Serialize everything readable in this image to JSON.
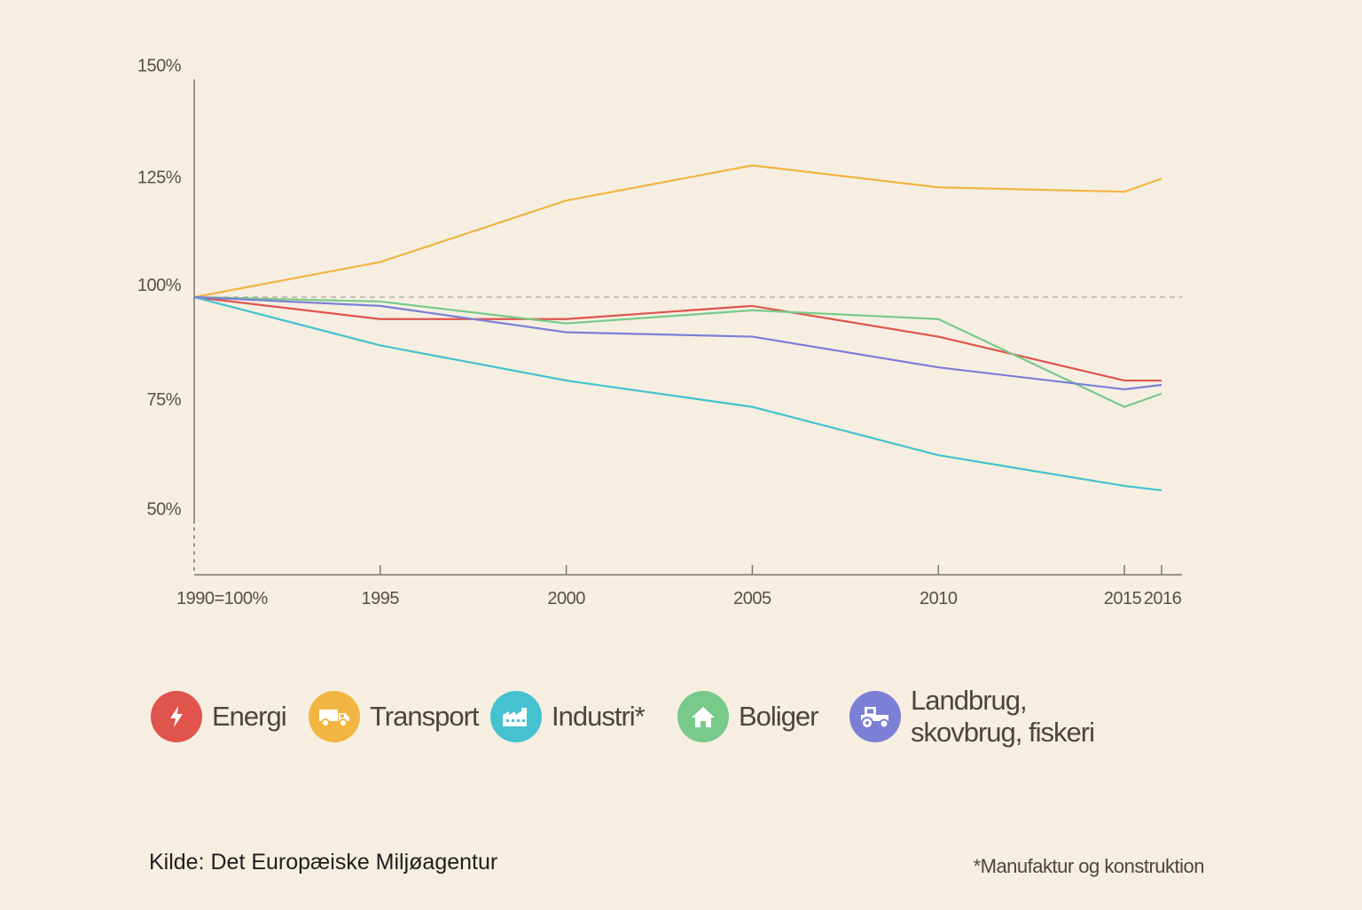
{
  "chart_data": {
    "type": "line",
    "x": [
      1990,
      1995,
      2000,
      2005,
      2010,
      2015,
      2016
    ],
    "x_tick_labels": [
      "1990=100%",
      "1995",
      "2000",
      "2005",
      "2010",
      "2015",
      "2016"
    ],
    "y_tick_values": [
      50,
      75,
      100,
      125,
      150
    ],
    "y_tick_labels": [
      "50%",
      "75%",
      "100%",
      "125%",
      "150%"
    ],
    "ylim": [
      37,
      150
    ],
    "baseline": 100,
    "grid": false,
    "legend_position": "bottom",
    "series": [
      {
        "name": "Energi",
        "color": "#e0544c",
        "values": [
          100,
          95,
          95,
          98,
          91,
          81,
          81
        ]
      },
      {
        "name": "Transport",
        "color": "#f2b542",
        "values": [
          100,
          108,
          122,
          130,
          125,
          124,
          127
        ]
      },
      {
        "name": "Industri*",
        "color": "#45c1d0",
        "values": [
          100,
          89,
          81,
          75,
          64,
          57,
          56
        ]
      },
      {
        "name": "Boliger",
        "color": "#78c98a",
        "values": [
          100,
          99,
          94,
          97,
          95,
          75,
          78
        ]
      },
      {
        "name": "Landbrug, skovbrug, fiskeri",
        "color": "#7b7fd6",
        "values": [
          100,
          98,
          92,
          91,
          84,
          79,
          80
        ]
      }
    ]
  },
  "legend": [
    {
      "label": "Energi",
      "icon": "lightning-icon",
      "color": "#e0544c"
    },
    {
      "label": "Transport",
      "icon": "truck-icon",
      "color": "#f2b542"
    },
    {
      "label": "Industri*",
      "icon": "factory-icon",
      "color": "#45c1d0"
    },
    {
      "label": "Boliger",
      "icon": "house-icon",
      "color": "#78c98a"
    },
    {
      "label": "Landbrug, skovbrug, fiskeri",
      "icon": "tractor-icon",
      "color": "#7b7fd6"
    }
  ],
  "source": "Kilde: Det Europæiske Miljøagentur",
  "footnote": "*Manufaktur og konstruktion"
}
